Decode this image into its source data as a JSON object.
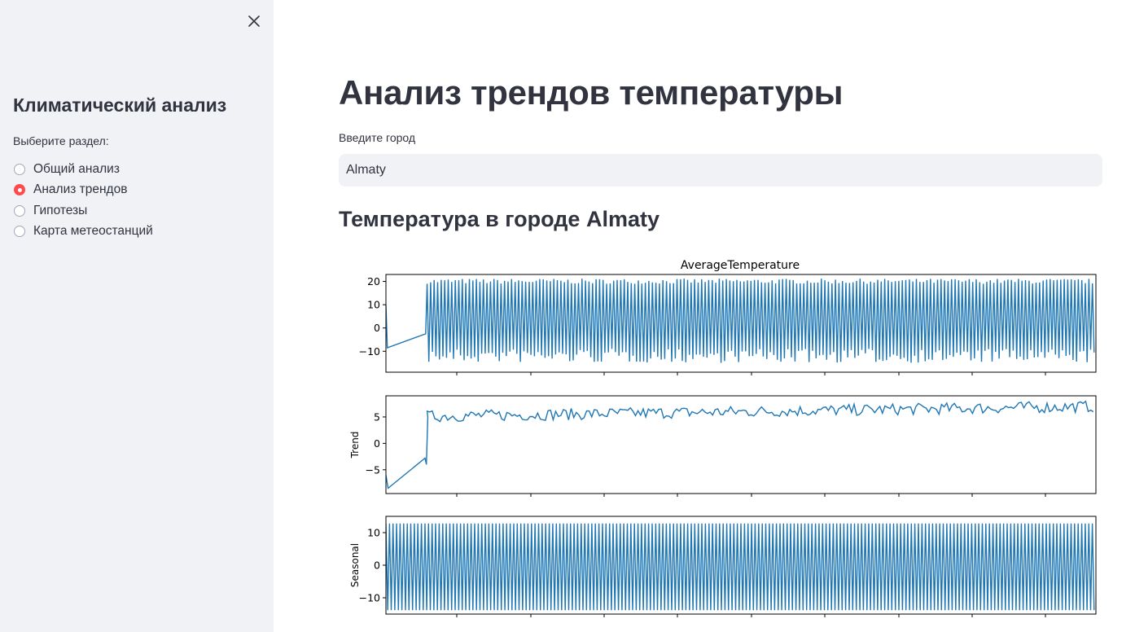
{
  "sidebar": {
    "title": "Климатический анализ",
    "radio_label": "Выберите раздел:",
    "options": [
      {
        "label": "Общий анализ",
        "selected": false
      },
      {
        "label": "Анализ трендов",
        "selected": true
      },
      {
        "label": "Гипотезы",
        "selected": false
      },
      {
        "label": "Карта метеостанций",
        "selected": false
      }
    ],
    "close_icon": "close-icon"
  },
  "main": {
    "title": "Анализ трендов температуры",
    "input_label": "Введите город",
    "input_value": "Almaty",
    "section_title": "Температура в городе Almaty"
  },
  "colors": {
    "accent": "#ff4b4b",
    "sidebar_bg": "#f0f2f6",
    "line": "#1f77b4"
  },
  "chart_data": [
    {
      "type": "line",
      "title": "AverageTemperature",
      "ylabel": "",
      "ylim": [
        -19,
        23
      ],
      "yticks": [
        -10,
        0,
        10,
        20
      ],
      "series": [
        {
          "values_description_free": true
        }
      ]
    },
    {
      "type": "line",
      "title": "",
      "ylabel": "Trend",
      "ylim": [
        -9.5,
        9
      ],
      "yticks": [
        -5,
        0,
        5
      ]
    },
    {
      "type": "line",
      "title": "",
      "ylabel": "Seasonal",
      "ylim": [
        -15,
        15
      ],
      "yticks": [
        -10,
        0,
        10
      ]
    }
  ]
}
